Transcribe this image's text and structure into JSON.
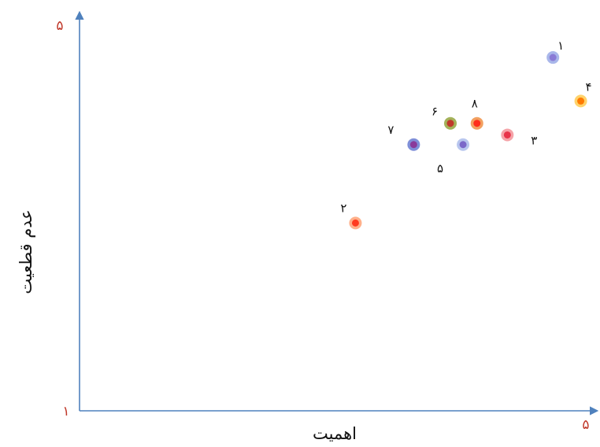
{
  "chart_data": {
    "type": "scatter",
    "title": "",
    "xlabel": "اهمیت",
    "ylabel": "عدم قطعیت",
    "xlim": [
      1,
      5
    ],
    "ylim": [
      1,
      5
    ],
    "x_tick_labels": [
      "۵"
    ],
    "y_tick_labels": [
      "۵",
      "۱"
    ],
    "grid": false,
    "legend": "none",
    "points": [
      {
        "label": "۱",
        "x": 4.74,
        "y": 4.65,
        "fill": "#8a7bd6",
        "ring": "#a9b7ea"
      },
      {
        "label": "۲",
        "x": 3.18,
        "y": 2.94,
        "fill": "#ff3b1f",
        "ring": "#ffb08a"
      },
      {
        "label": "۳",
        "x": 4.38,
        "y": 3.85,
        "fill": "#e8344a",
        "ring": "#f5a3a8"
      },
      {
        "label": "۴",
        "x": 4.96,
        "y": 4.2,
        "fill": "#ff7a00",
        "ring": "#ffd36b"
      },
      {
        "label": "۵",
        "x": 4.03,
        "y": 3.75,
        "fill": "#7b68c9",
        "ring": "#b8c6ee"
      },
      {
        "label": "۶",
        "x": 3.93,
        "y": 3.97,
        "fill": "#c0392b",
        "ring": "#a4b25a"
      },
      {
        "label": "۷",
        "x": 3.64,
        "y": 3.75,
        "fill": "#8a3a9a",
        "ring": "#7f8fd8"
      },
      {
        "label": "۸",
        "x": 4.14,
        "y": 3.97,
        "fill": "#ff2d1a",
        "ring": "#f2a060"
      }
    ]
  }
}
